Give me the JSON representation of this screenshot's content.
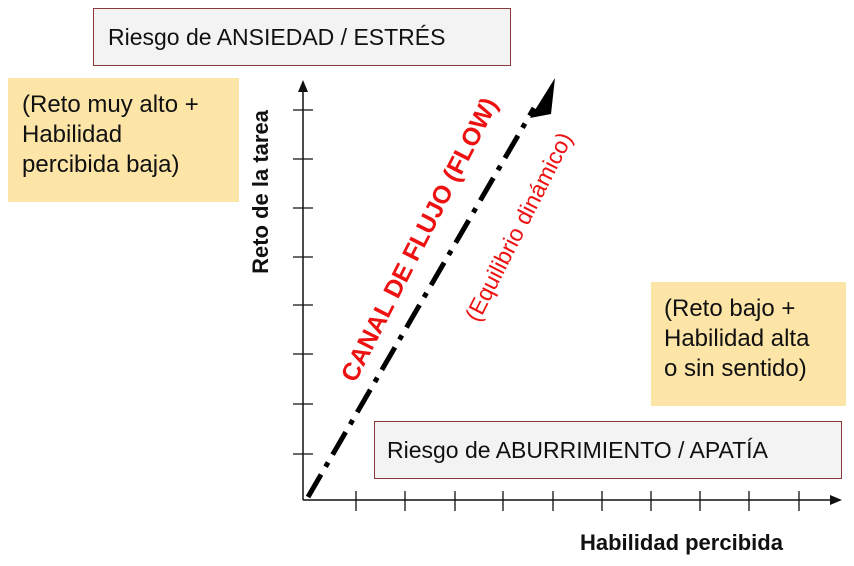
{
  "zones": {
    "anxiety": "Riesgo de ANSIEDAD / ESTRÉS",
    "boredom": "Riesgo de ABURRIMIENTO / APATÍA"
  },
  "notes": {
    "high_challenge": [
      "(Reto muy alto +",
      "Habilidad",
      "percibida baja)"
    ],
    "low_challenge": [
      "(Reto bajo +",
      "Habilidad alta",
      "o sin sentido)"
    ]
  },
  "axes": {
    "x_label": "Habilidad percibida",
    "y_label": "Reto de la tarea"
  },
  "flow": {
    "title": "CANAL DE FLUJO (FLOW)",
    "subtitle": "(Equilibrio dinámico)"
  },
  "colors": {
    "flow_text": "#ee1111",
    "gray_box_fill": "#f3f3f3",
    "gray_box_border": "#8a3a3a",
    "note_fill": "#fce5a6"
  }
}
